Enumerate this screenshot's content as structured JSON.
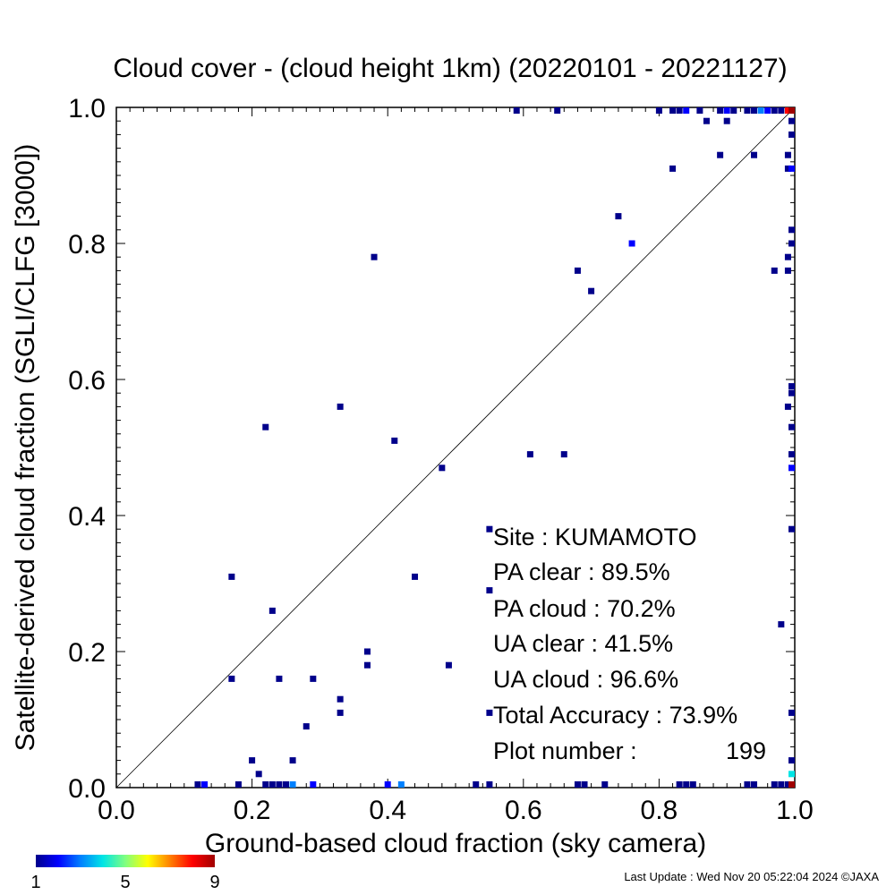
{
  "chart_data": {
    "type": "scatter",
    "title": "Cloud cover - (cloud height 1km)  (20220101 - 20221127)",
    "xlabel": "Ground-based cloud fraction (sky camera)",
    "ylabel": "Satellite-derived cloud fraction (SGLI/CLFG [3000])",
    "xlim": [
      0,
      1
    ],
    "ylim": [
      0,
      1
    ],
    "x_ticks": [
      "0.0",
      "0.2",
      "0.4",
      "0.6",
      "0.8",
      "1.0"
    ],
    "y_ticks": [
      "0.0",
      "0.2",
      "0.4",
      "0.6",
      "0.8",
      "1.0"
    ],
    "reference_line": "1:1 diagonal",
    "colorbar": {
      "min": 1,
      "max": 9,
      "tick_labels": [
        "1",
        "5",
        "9"
      ],
      "colors": [
        "#00008b",
        "#0000ff",
        "#0080ff",
        "#00e5e5",
        "#80ff80",
        "#ffff00",
        "#ff8000",
        "#ff0000",
        "#a00000"
      ]
    },
    "points": [
      {
        "x": 0.59,
        "y": 1.0,
        "count": 1
      },
      {
        "x": 0.65,
        "y": 1.0,
        "count": 1
      },
      {
        "x": 0.8,
        "y": 1.0,
        "count": 1
      },
      {
        "x": 0.82,
        "y": 1.0,
        "count": 1
      },
      {
        "x": 0.83,
        "y": 1.0,
        "count": 1
      },
      {
        "x": 0.84,
        "y": 1.0,
        "count": 2
      },
      {
        "x": 0.86,
        "y": 1.0,
        "count": 1
      },
      {
        "x": 0.89,
        "y": 1.0,
        "count": 1
      },
      {
        "x": 0.9,
        "y": 1.0,
        "count": 2
      },
      {
        "x": 0.91,
        "y": 1.0,
        "count": 1
      },
      {
        "x": 0.93,
        "y": 1.0,
        "count": 1
      },
      {
        "x": 0.94,
        "y": 1.0,
        "count": 1
      },
      {
        "x": 0.95,
        "y": 1.0,
        "count": 3
      },
      {
        "x": 0.96,
        "y": 1.0,
        "count": 2
      },
      {
        "x": 0.97,
        "y": 1.0,
        "count": 1
      },
      {
        "x": 0.98,
        "y": 1.0,
        "count": 1
      },
      {
        "x": 0.99,
        "y": 1.0,
        "count": 8
      },
      {
        "x": 1.0,
        "y": 1.0,
        "count": 9
      },
      {
        "x": 0.87,
        "y": 0.98,
        "count": 1
      },
      {
        "x": 0.9,
        "y": 0.98,
        "count": 1
      },
      {
        "x": 1.0,
        "y": 0.98,
        "count": 1
      },
      {
        "x": 1.0,
        "y": 0.96,
        "count": 1
      },
      {
        "x": 0.89,
        "y": 0.93,
        "count": 1
      },
      {
        "x": 0.94,
        "y": 0.93,
        "count": 1
      },
      {
        "x": 0.99,
        "y": 0.93,
        "count": 1
      },
      {
        "x": 0.82,
        "y": 0.91,
        "count": 1
      },
      {
        "x": 0.99,
        "y": 0.91,
        "count": 1
      },
      {
        "x": 1.0,
        "y": 0.91,
        "count": 2
      },
      {
        "x": 0.74,
        "y": 0.84,
        "count": 1
      },
      {
        "x": 1.0,
        "y": 0.82,
        "count": 1
      },
      {
        "x": 0.76,
        "y": 0.8,
        "count": 2
      },
      {
        "x": 1.0,
        "y": 0.8,
        "count": 1
      },
      {
        "x": 0.38,
        "y": 0.78,
        "count": 1
      },
      {
        "x": 0.99,
        "y": 0.78,
        "count": 1
      },
      {
        "x": 0.68,
        "y": 0.76,
        "count": 1
      },
      {
        "x": 0.97,
        "y": 0.76,
        "count": 1
      },
      {
        "x": 0.99,
        "y": 0.76,
        "count": 1
      },
      {
        "x": 0.7,
        "y": 0.73,
        "count": 1
      },
      {
        "x": 1.0,
        "y": 0.59,
        "count": 1
      },
      {
        "x": 1.0,
        "y": 0.58,
        "count": 1
      },
      {
        "x": 0.33,
        "y": 0.56,
        "count": 1
      },
      {
        "x": 0.99,
        "y": 0.56,
        "count": 1
      },
      {
        "x": 0.22,
        "y": 0.53,
        "count": 1
      },
      {
        "x": 1.0,
        "y": 0.53,
        "count": 1
      },
      {
        "x": 0.41,
        "y": 0.51,
        "count": 1
      },
      {
        "x": 0.61,
        "y": 0.49,
        "count": 1
      },
      {
        "x": 0.66,
        "y": 0.49,
        "count": 1
      },
      {
        "x": 1.0,
        "y": 0.49,
        "count": 1
      },
      {
        "x": 0.48,
        "y": 0.47,
        "count": 1
      },
      {
        "x": 1.0,
        "y": 0.47,
        "count": 2
      },
      {
        "x": 0.55,
        "y": 0.38,
        "count": 1
      },
      {
        "x": 1.0,
        "y": 0.38,
        "count": 1
      },
      {
        "x": 0.17,
        "y": 0.31,
        "count": 1
      },
      {
        "x": 0.44,
        "y": 0.31,
        "count": 1
      },
      {
        "x": 0.55,
        "y": 0.29,
        "count": 1
      },
      {
        "x": 0.23,
        "y": 0.26,
        "count": 1
      },
      {
        "x": 0.98,
        "y": 0.24,
        "count": 1
      },
      {
        "x": 0.37,
        "y": 0.2,
        "count": 1
      },
      {
        "x": 0.37,
        "y": 0.18,
        "count": 1
      },
      {
        "x": 0.49,
        "y": 0.18,
        "count": 1
      },
      {
        "x": 0.17,
        "y": 0.16,
        "count": 1
      },
      {
        "x": 0.24,
        "y": 0.16,
        "count": 1
      },
      {
        "x": 0.29,
        "y": 0.16,
        "count": 1
      },
      {
        "x": 0.33,
        "y": 0.13,
        "count": 1
      },
      {
        "x": 0.33,
        "y": 0.11,
        "count": 1
      },
      {
        "x": 0.55,
        "y": 0.11,
        "count": 1
      },
      {
        "x": 1.0,
        "y": 0.11,
        "count": 1
      },
      {
        "x": 0.28,
        "y": 0.09,
        "count": 1
      },
      {
        "x": 0.2,
        "y": 0.04,
        "count": 1
      },
      {
        "x": 0.26,
        "y": 0.04,
        "count": 1
      },
      {
        "x": 1.0,
        "y": 0.04,
        "count": 1
      },
      {
        "x": 0.21,
        "y": 0.02,
        "count": 1
      },
      {
        "x": 1.0,
        "y": 0.02,
        "count": 4
      },
      {
        "x": 0.12,
        "y": 0.0,
        "count": 1
      },
      {
        "x": 0.13,
        "y": 0.0,
        "count": 2
      },
      {
        "x": 0.18,
        "y": 0.0,
        "count": 1
      },
      {
        "x": 0.22,
        "y": 0.0,
        "count": 1
      },
      {
        "x": 0.23,
        "y": 0.0,
        "count": 1
      },
      {
        "x": 0.24,
        "y": 0.0,
        "count": 1
      },
      {
        "x": 0.25,
        "y": 0.0,
        "count": 1
      },
      {
        "x": 0.26,
        "y": 0.0,
        "count": 3
      },
      {
        "x": 0.29,
        "y": 0.0,
        "count": 2
      },
      {
        "x": 0.4,
        "y": 0.0,
        "count": 2
      },
      {
        "x": 0.42,
        "y": 0.0,
        "count": 3
      },
      {
        "x": 0.53,
        "y": 0.0,
        "count": 1
      },
      {
        "x": 0.55,
        "y": 0.0,
        "count": 1
      },
      {
        "x": 0.68,
        "y": 0.0,
        "count": 1
      },
      {
        "x": 0.69,
        "y": 0.0,
        "count": 1
      },
      {
        "x": 0.72,
        "y": 0.0,
        "count": 1
      },
      {
        "x": 0.83,
        "y": 0.0,
        "count": 1
      },
      {
        "x": 0.84,
        "y": 0.0,
        "count": 1
      },
      {
        "x": 0.85,
        "y": 0.0,
        "count": 1
      },
      {
        "x": 0.93,
        "y": 0.0,
        "count": 1
      },
      {
        "x": 0.94,
        "y": 0.0,
        "count": 1
      },
      {
        "x": 0.97,
        "y": 0.0,
        "count": 1
      },
      {
        "x": 0.98,
        "y": 0.0,
        "count": 1
      },
      {
        "x": 0.99,
        "y": 0.0,
        "count": 1
      },
      {
        "x": 1.0,
        "y": 0.0,
        "count": 9
      }
    ]
  },
  "stats": {
    "site": "Site : KUMAMOTO",
    "pa_clear": "PA clear :  89.5%",
    "pa_cloud": "PA cloud :  70.2%",
    "ua_clear": "UA clear :  41.5%",
    "ua_cloud": "UA cloud :  96.6%",
    "total_accuracy": "Total Accuracy :  73.9%",
    "plot_number_label": "Plot number :",
    "plot_number_value": "199"
  },
  "footer": {
    "last_update": "Last Update : Wed Nov 20 05:22:04 2024  ©JAXA"
  }
}
